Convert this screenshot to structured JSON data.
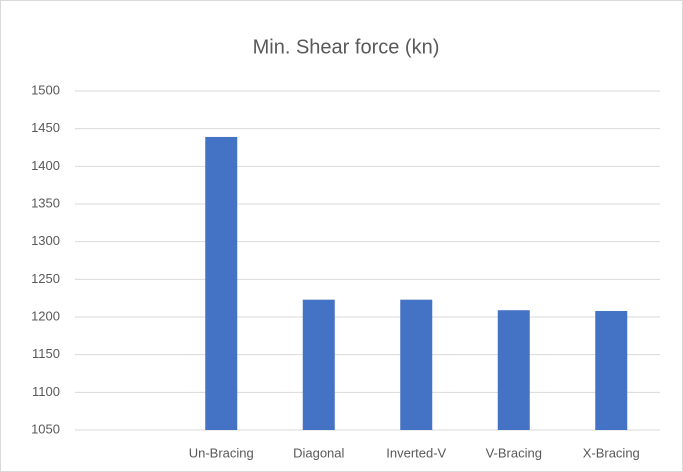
{
  "chart_data": {
    "type": "bar",
    "title": "Min. Shear force (kn)",
    "categories": [
      null,
      "Un-Bracing",
      "Diagonal",
      "Inverted-V",
      "V-Bracing",
      "X-Bracing"
    ],
    "values": [
      null,
      1439,
      1223,
      1223,
      1209,
      1208
    ],
    "color": "#4472c4",
    "ylim": [
      1050,
      1500
    ],
    "yticks": [
      1050,
      1100,
      1150,
      1200,
      1250,
      1300,
      1350,
      1400,
      1450,
      1500
    ],
    "grid": true
  }
}
